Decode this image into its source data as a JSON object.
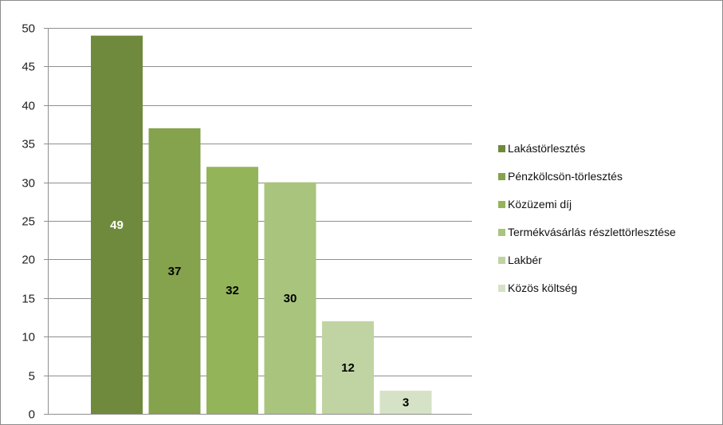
{
  "chart_data": {
    "type": "bar",
    "categories": [
      "Lakástörlesztés",
      "Pénzkölcsön-törlesztés",
      "Közüzemi díj",
      "Termékvásárlás részlettörlesztése",
      "Lakbér",
      "Közös költség"
    ],
    "values": [
      49,
      37,
      32,
      30,
      12,
      3
    ],
    "colors": [
      "#6f8a3c",
      "#85a24c",
      "#94b45a",
      "#a9c47d",
      "#c0d4a3",
      "#d6e2c5"
    ],
    "label_colors": [
      "#ffffff",
      "#000000",
      "#000000",
      "#000000",
      "#000000",
      "#000000"
    ],
    "yticks": [
      0,
      5,
      10,
      15,
      20,
      25,
      30,
      35,
      40,
      45,
      50
    ],
    "ylim": [
      0,
      50
    ],
    "title": "",
    "xlabel": "",
    "ylabel": "",
    "grid": true,
    "legend_position": "right"
  }
}
